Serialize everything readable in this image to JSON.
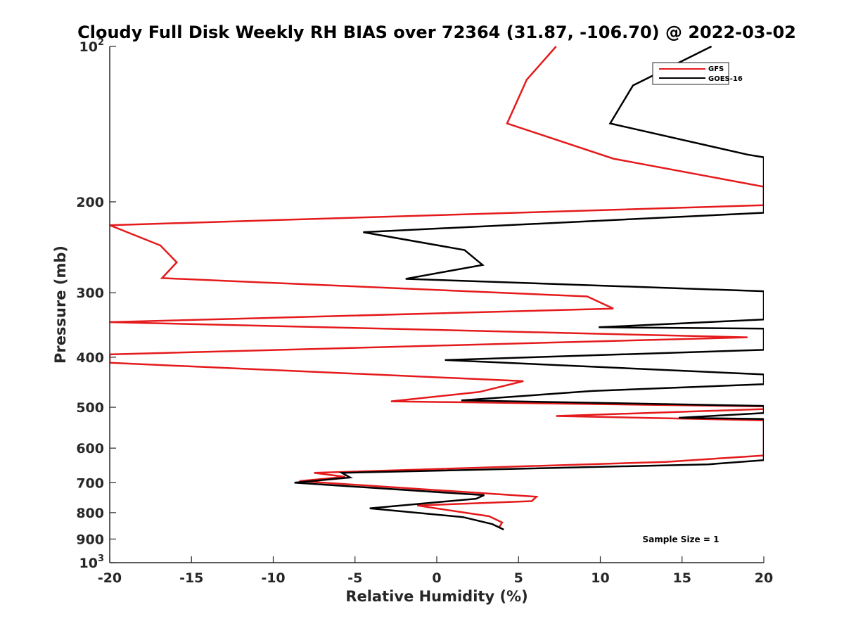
{
  "chart_data": {
    "type": "line",
    "title": "Cloudy Full Disk Weekly RH BIAS over 72364 (31.87, -106.70) @ 2022-03-02",
    "xlabel": "Relative Humidity (%)",
    "ylabel": "Pressure (mb)",
    "xlim": [
      -20,
      20
    ],
    "ylim": [
      100,
      1000
    ],
    "y_scale": "log",
    "y_reversed": true,
    "grid": false,
    "legend_position": "top-right",
    "x_ticks": [
      -20,
      -15,
      -10,
      -5,
      0,
      5,
      10,
      15,
      20
    ],
    "x_tick_labels": [
      "-20",
      "-15",
      "-10",
      "-5",
      "0",
      "5",
      "10",
      "15",
      "20"
    ],
    "y_ticks": [
      100,
      200,
      300,
      400,
      500,
      600,
      700,
      800,
      900,
      1000
    ],
    "y_tick_labels": [
      {
        "base": "10",
        "exp": "2"
      },
      {
        "base": "200",
        "exp": ""
      },
      {
        "base": "300",
        "exp": ""
      },
      {
        "base": "400",
        "exp": ""
      },
      {
        "base": "500",
        "exp": ""
      },
      {
        "base": "600",
        "exp": ""
      },
      {
        "base": "700",
        "exp": ""
      },
      {
        "base": "800",
        "exp": ""
      },
      {
        "base": "900",
        "exp": ""
      },
      {
        "base": "10",
        "exp": "3"
      }
    ],
    "annotation": "Sample Size = 1",
    "series": [
      {
        "name": "GFS",
        "color": "#e41a1c",
        "points": [
          [
            7.3,
            100
          ],
          [
            5.5,
            116
          ],
          [
            4.3,
            141
          ],
          [
            10.8,
            165
          ],
          [
            20,
            187
          ],
          [
            20,
            203
          ],
          [
            -20,
            222
          ],
          [
            -16.9,
            243
          ],
          [
            -15.9,
            262
          ],
          [
            -16.8,
            281
          ],
          [
            9.2,
            305
          ],
          [
            10.8,
            322
          ],
          [
            -20,
            342
          ],
          [
            19.0,
            366
          ],
          [
            -20,
            395
          ],
          [
            -20,
            410
          ],
          [
            5.3,
            445
          ],
          [
            2.6,
            467
          ],
          [
            -2.8,
            487
          ],
          [
            20,
            498
          ],
          [
            20,
            504
          ],
          [
            7.3,
            520
          ],
          [
            20,
            530
          ],
          [
            20,
            620
          ],
          [
            14.0,
            638
          ],
          [
            -7.5,
            670
          ],
          [
            -5.6,
            682
          ],
          [
            -8.4,
            695
          ],
          [
            6.1,
            745
          ],
          [
            5.8,
            760
          ],
          [
            -1.2,
            775
          ],
          [
            3.2,
            813
          ],
          [
            4.0,
            836
          ],
          [
            3.8,
            855
          ]
        ]
      },
      {
        "name": "GOES-16",
        "color": "#000000",
        "points": [
          [
            16.8,
            100
          ],
          [
            12.0,
            119
          ],
          [
            10.6,
            141
          ],
          [
            19.0,
            162
          ],
          [
            20,
            164
          ],
          [
            20,
            210
          ],
          [
            -4.5,
            229
          ],
          [
            1.7,
            248
          ],
          [
            2.8,
            265
          ],
          [
            -1.9,
            282
          ],
          [
            20,
            298
          ],
          [
            20,
            338
          ],
          [
            9.9,
            350
          ],
          [
            20,
            352
          ],
          [
            20,
            387
          ],
          [
            0.5,
            405
          ],
          [
            20,
            432
          ],
          [
            20,
            451
          ],
          [
            9.5,
            465
          ],
          [
            1.5,
            485
          ],
          [
            20,
            497
          ],
          [
            20,
            513
          ],
          [
            14.8,
            524
          ],
          [
            20,
            527
          ],
          [
            20,
            633
          ],
          [
            16.6,
            645
          ],
          [
            -5.8,
            670
          ],
          [
            -5.3,
            684
          ],
          [
            -8.7,
            700
          ],
          [
            2.9,
            740
          ],
          [
            2.4,
            752
          ],
          [
            -4.1,
            785
          ],
          [
            1.6,
            816
          ],
          [
            3.4,
            842
          ],
          [
            4.1,
            863
          ]
        ]
      }
    ]
  }
}
